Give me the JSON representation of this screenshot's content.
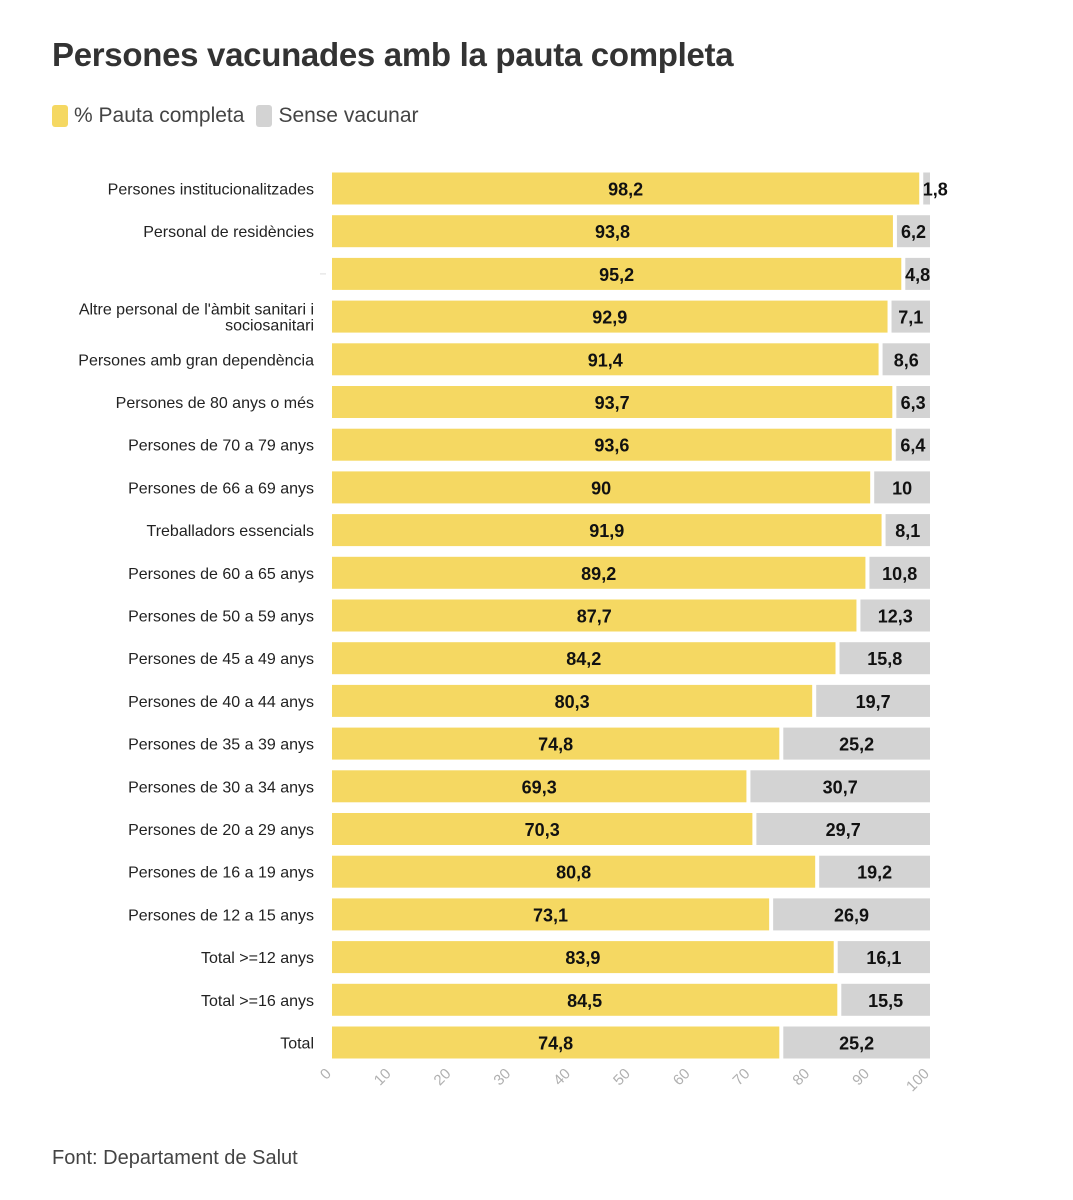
{
  "title": "Persones vacunades amb la pauta completa",
  "source": "Font: Departament de Salut",
  "legend": [
    {
      "label": "% Pauta completa",
      "color": "#f5d862"
    },
    {
      "label": "Sense vacunar",
      "color": "#d3d3d3"
    }
  ],
  "chart_data": {
    "type": "bar",
    "orientation": "horizontal",
    "stacked": true,
    "categories": [
      [
        "Persones institucionalitzades"
      ],
      [
        "Personal de residències"
      ],
      [
        ""
      ],
      [
        "Altre personal de l'àmbit sanitari i",
        "sociosanitari"
      ],
      [
        "Persones amb gran dependència"
      ],
      [
        "Persones de 80 anys o més"
      ],
      [
        "Persones de 70 a 79 anys"
      ],
      [
        "Persones de 66 a 69 anys"
      ],
      [
        "Treballadors essencials"
      ],
      [
        "Persones de 60 a 65 anys"
      ],
      [
        "Persones de 50 a 59 anys"
      ],
      [
        "Persones de 45 a 49 anys"
      ],
      [
        "Persones de 40 a 44 anys"
      ],
      [
        "Persones de 35 a 39 anys"
      ],
      [
        "Persones de 30 a 34 anys"
      ],
      [
        "Persones de 20 a 29 anys"
      ],
      [
        "Persones de 16 a 19 anys"
      ],
      [
        "Persones de 12 a 15 anys"
      ],
      [
        "Total >=12 anys"
      ],
      [
        "Total >=16 anys"
      ],
      [
        "Total"
      ]
    ],
    "series": [
      {
        "name": "% Pauta completa",
        "color": "#f5d862",
        "values": [
          98.2,
          93.8,
          95.2,
          92.9,
          91.4,
          93.7,
          93.6,
          90,
          91.9,
          89.2,
          87.7,
          84.2,
          80.3,
          74.8,
          69.3,
          70.3,
          80.8,
          73.1,
          83.9,
          84.5,
          74.8
        ],
        "labels": [
          "98,2",
          "93,8",
          "95,2",
          "92,9",
          "91,4",
          "93,7",
          "93,6",
          "90",
          "91,9",
          "89,2",
          "87,7",
          "84,2",
          "80,3",
          "74,8",
          "69,3",
          "70,3",
          "80,8",
          "73,1",
          "83,9",
          "84,5",
          "74,8"
        ]
      },
      {
        "name": "Sense vacunar",
        "color": "#d3d3d3",
        "values": [
          1.8,
          6.2,
          4.8,
          7.1,
          8.6,
          6.3,
          6.4,
          10,
          8.1,
          10.8,
          12.3,
          15.8,
          19.7,
          25.2,
          30.7,
          29.7,
          19.2,
          26.9,
          16.1,
          15.5,
          25.2
        ],
        "labels": [
          "1,8",
          "6,2",
          "4,8",
          "7,1",
          "8,6",
          "6,3",
          "6,4",
          "10",
          "8,1",
          "10,8",
          "12,3",
          "15,8",
          "19,7",
          "25,2",
          "30,7",
          "29,7",
          "19,2",
          "26,9",
          "16,1",
          "15,5",
          "25,2"
        ]
      }
    ],
    "xlim": [
      0,
      100
    ],
    "xticks": [
      "0",
      "10",
      "20",
      "30",
      "40",
      "50",
      "60",
      "70",
      "80",
      "90",
      "100"
    ],
    "grid": false
  }
}
